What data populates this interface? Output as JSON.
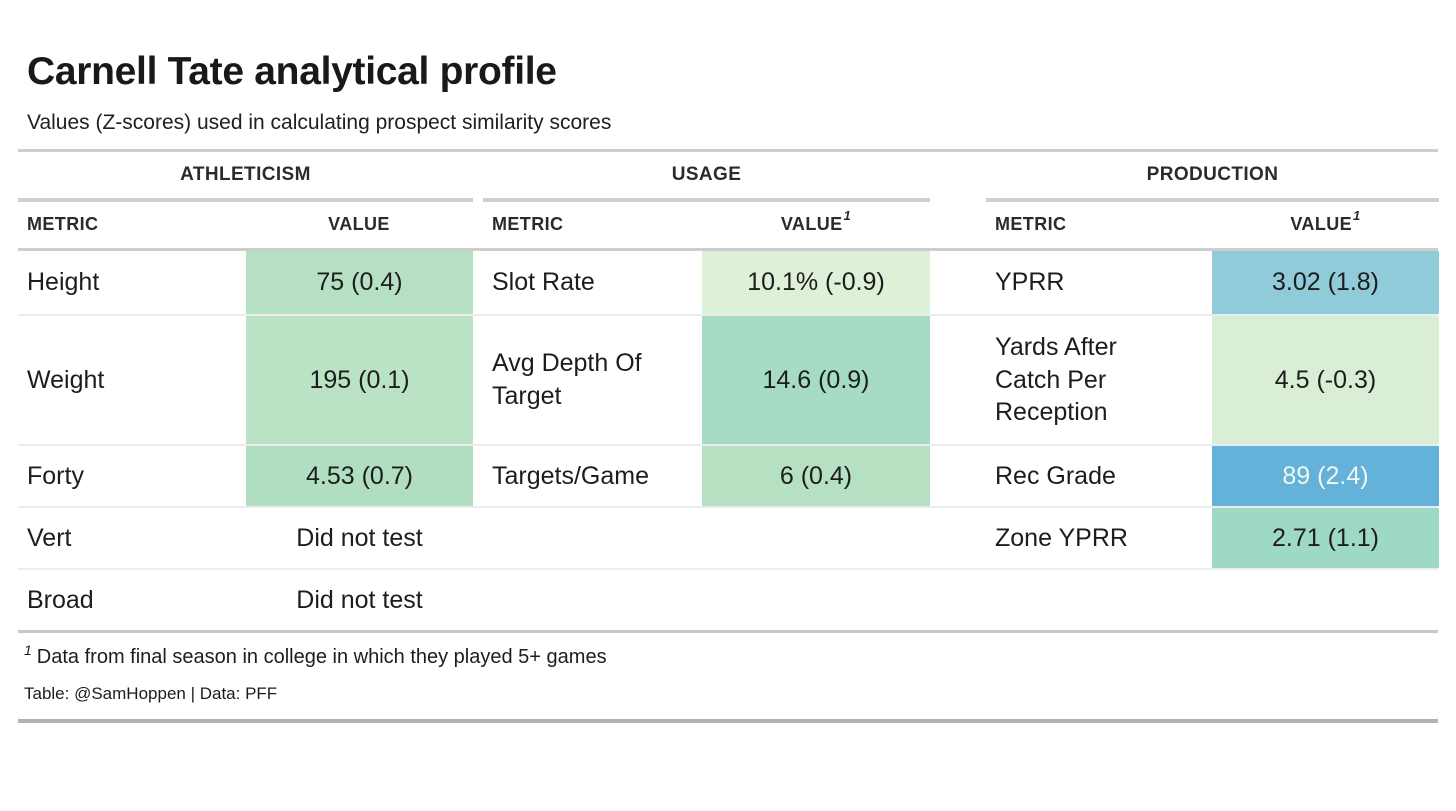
{
  "title": "Carnell Tate analytical profile",
  "subtitle": "Values (Z-scores) used in calculating prospect similarity scores",
  "table": {
    "headers": {
      "metric": "METRIC",
      "value": "VALUE"
    },
    "groups": [
      {
        "label": "ATHLETICISM",
        "value_sup": ""
      },
      {
        "label": "USAGE",
        "value_sup": "1"
      },
      {
        "label": "PRODUCTION",
        "value_sup": "1"
      }
    ],
    "rows": [
      {
        "cells": [
          {
            "metric": "Height",
            "value": "75 (0.4)",
            "bg": "#b6e0c3",
            "fg": "#1d1d1d"
          },
          {
            "metric": "Slot Rate",
            "value": "10.1% (-0.9)",
            "bg": "#def0d8",
            "fg": "#1d1d1d"
          },
          {
            "metric": "YPRR",
            "value": "3.02 (1.8)",
            "bg": "#90cbd9",
            "fg": "#1d1d1d"
          }
        ]
      },
      {
        "cells": [
          {
            "metric": "Weight",
            "value": "195 (0.1)",
            "bg": "#bae2c5",
            "fg": "#1d1d1d"
          },
          {
            "metric": "Avg Depth Of Target",
            "value": "14.6 (0.9)",
            "bg": "#a6dcc6",
            "fg": "#1d1d1d"
          },
          {
            "metric": "Yards After Catch Per Reception",
            "value": "4.5 (-0.3)",
            "bg": "#d9eed4",
            "fg": "#1d1d1d"
          }
        ]
      },
      {
        "cells": [
          {
            "metric": "Forty",
            "value": "4.53 (0.7)",
            "bg": "#b1ddc0",
            "fg": "#1d1d1d"
          },
          {
            "metric": "Targets/Game",
            "value": "6 (0.4)",
            "bg": "#b6e0c2",
            "fg": "#1d1d1d"
          },
          {
            "metric": "Rec Grade",
            "value": "89 (2.4)",
            "bg": "#64b1da",
            "fg": "#f1f7f2"
          }
        ]
      },
      {
        "cells": [
          {
            "metric": "Vert",
            "value": "Did not test",
            "bg": "",
            "fg": "#1d1d1d"
          },
          {
            "metric": "",
            "value": "",
            "bg": "",
            "fg": ""
          },
          {
            "metric": "Zone YPRR",
            "value": "2.71 (1.1)",
            "bg": "#9ed8c7",
            "fg": "#1d1d1d"
          }
        ]
      },
      {
        "cells": [
          {
            "metric": "Broad",
            "value": "Did not test",
            "bg": "",
            "fg": "#1d1d1d"
          },
          {
            "metric": "",
            "value": "",
            "bg": "",
            "fg": ""
          },
          {
            "metric": "",
            "value": "",
            "bg": "",
            "fg": ""
          }
        ]
      }
    ]
  },
  "footnote": {
    "marker": "1",
    "text": "Data from final season in college in which they played 5+ games"
  },
  "credit": "Table: @SamHoppen | Data: PFF",
  "colors": {
    "rule_light": "#cdcdcd",
    "rule_bottom": "#b3b3b3",
    "row_separator": "#ececec",
    "text": "#1d1d1d"
  },
  "chart_data": {
    "type": "table",
    "title": "Carnell Tate analytical profile",
    "subtitle": "Values (Z-scores) used in calculating prospect similarity scores",
    "column_groups": [
      "ATHLETICISM",
      "USAGE",
      "PRODUCTION"
    ],
    "columns_per_group": [
      "METRIC",
      "VALUE"
    ],
    "athleticism": [
      [
        "Height",
        "75 (0.4)"
      ],
      [
        "Weight",
        "195 (0.1)"
      ],
      [
        "Forty",
        "4.53 (0.7)"
      ],
      [
        "Vert",
        "Did not test"
      ],
      [
        "Broad",
        "Did not test"
      ]
    ],
    "usage": [
      [
        "Slot Rate",
        "10.1% (-0.9)"
      ],
      [
        "Avg Depth Of Target",
        "14.6 (0.9)"
      ],
      [
        "Targets/Game",
        "6 (0.4)"
      ]
    ],
    "production": [
      [
        "YPRR",
        "3.02 (1.8)"
      ],
      [
        "Yards After Catch Per Reception",
        "4.5 (-0.3)"
      ],
      [
        "Rec Grade",
        "89 (2.4)"
      ],
      [
        "Zone YPRR",
        "2.71 (1.1)"
      ]
    ],
    "value_footnote_applies_to": [
      "USAGE VALUE",
      "PRODUCTION VALUE"
    ],
    "footnote": "1 Data from final season in college in which they played 5+ games",
    "credit": "Table: @SamHoppen | Data: PFF",
    "cell_shading": "z-score color scale: pale green (low) to green to teal/blue (high)"
  }
}
